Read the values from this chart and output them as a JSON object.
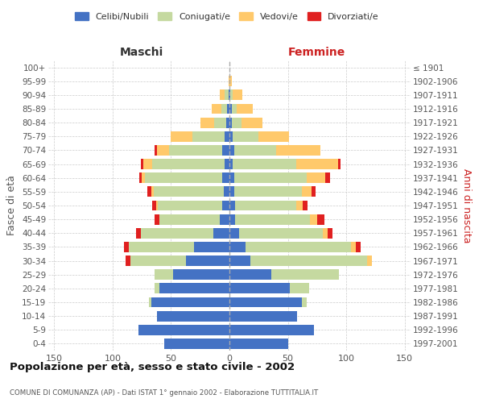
{
  "age_groups": [
    "0-4",
    "5-9",
    "10-14",
    "15-19",
    "20-24",
    "25-29",
    "30-34",
    "35-39",
    "40-44",
    "45-49",
    "50-54",
    "55-59",
    "60-64",
    "65-69",
    "70-74",
    "75-79",
    "80-84",
    "85-89",
    "90-94",
    "95-99",
    "100+"
  ],
  "birth_years": [
    "1997-2001",
    "1992-1996",
    "1987-1991",
    "1982-1986",
    "1977-1981",
    "1972-1976",
    "1967-1971",
    "1962-1966",
    "1957-1961",
    "1952-1956",
    "1947-1951",
    "1942-1946",
    "1937-1941",
    "1932-1936",
    "1927-1931",
    "1922-1926",
    "1917-1921",
    "1912-1916",
    "1907-1911",
    "1902-1906",
    "≤ 1901"
  ],
  "male": {
    "celibe": [
      56,
      78,
      62,
      67,
      60,
      48,
      37,
      30,
      14,
      8,
      6,
      5,
      6,
      4,
      6,
      4,
      3,
      2,
      1,
      0,
      0
    ],
    "coniugato": [
      0,
      0,
      0,
      2,
      4,
      16,
      48,
      56,
      62,
      52,
      55,
      60,
      66,
      62,
      46,
      28,
      10,
      5,
      3,
      0,
      0
    ],
    "vedovo": [
      0,
      0,
      0,
      0,
      0,
      0,
      0,
      0,
      0,
      0,
      2,
      2,
      3,
      8,
      10,
      18,
      12,
      8,
      4,
      1,
      0
    ],
    "divorziato": [
      0,
      0,
      0,
      0,
      0,
      0,
      4,
      4,
      4,
      4,
      3,
      3,
      2,
      2,
      2,
      0,
      0,
      0,
      0,
      0,
      0
    ]
  },
  "female": {
    "nubile": [
      50,
      72,
      58,
      62,
      52,
      36,
      18,
      14,
      8,
      5,
      5,
      4,
      4,
      3,
      4,
      3,
      2,
      2,
      1,
      0,
      0
    ],
    "coniugata": [
      0,
      0,
      0,
      4,
      16,
      58,
      100,
      90,
      72,
      64,
      52,
      58,
      62,
      54,
      36,
      22,
      8,
      4,
      2,
      0,
      0
    ],
    "vedova": [
      0,
      0,
      0,
      0,
      0,
      0,
      4,
      4,
      4,
      6,
      6,
      8,
      16,
      36,
      38,
      26,
      18,
      14,
      8,
      2,
      0
    ],
    "divorziata": [
      0,
      0,
      0,
      0,
      0,
      0,
      0,
      4,
      4,
      6,
      4,
      4,
      4,
      2,
      0,
      0,
      0,
      0,
      0,
      0,
      0
    ]
  },
  "colors": {
    "celibe_nubile": "#4472c4",
    "coniugato_a": "#c5d9a0",
    "vedovo_a": "#ffc96b",
    "divorziato_a": "#e02020"
  },
  "title": "Popolazione per età, sesso e stato civile - 2002",
  "subtitle": "COMUNE DI COMUNANZA (AP) - Dati ISTAT 1° gennaio 2002 - Elaborazione TUTTITALIA.IT",
  "xlabel_left": "Maschi",
  "xlabel_right": "Femmine",
  "ylabel_left": "Fasce di età",
  "ylabel_right": "Anni di nascita",
  "xlim": 155,
  "legend_labels": [
    "Celibi/Nubili",
    "Coniugati/e",
    "Vedovi/e",
    "Divorziati/e"
  ]
}
